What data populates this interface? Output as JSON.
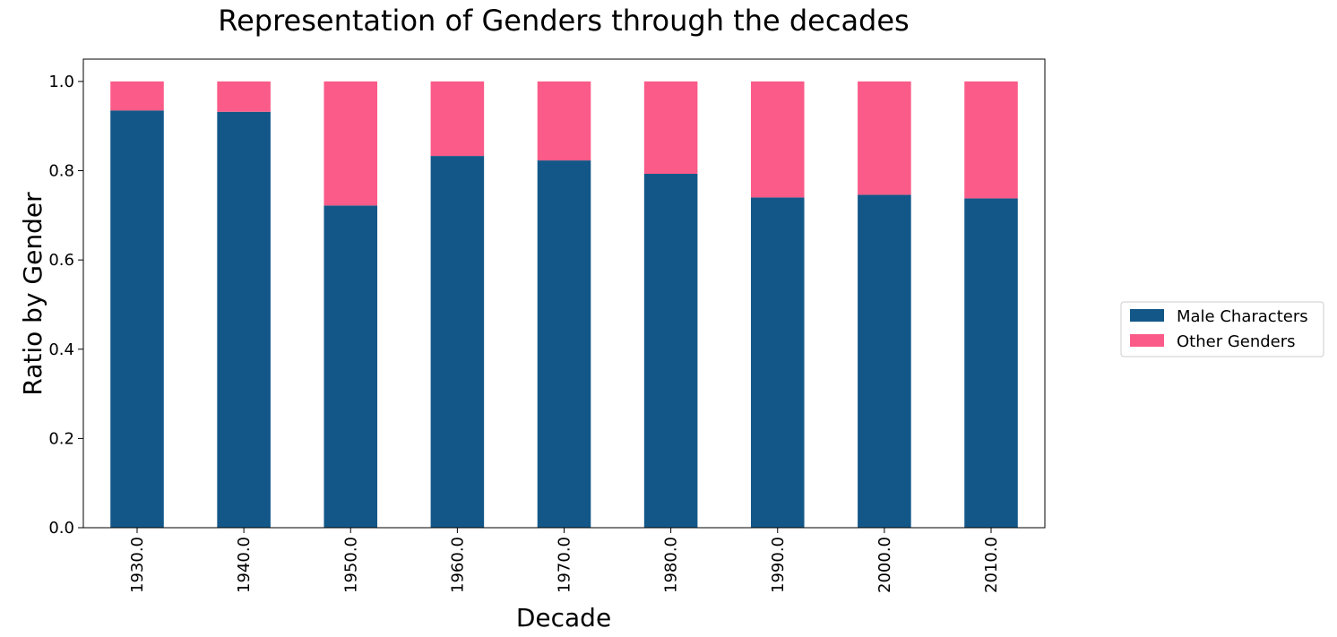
{
  "chart_data": {
    "type": "bar",
    "stacked": true,
    "title": "Representation of Genders through the decades",
    "xlabel": "Decade",
    "ylabel": "Ratio by Gender",
    "categories": [
      "1930.0",
      "1940.0",
      "1950.0",
      "1960.0",
      "1970.0",
      "1980.0",
      "1990.0",
      "2000.0",
      "2010.0"
    ],
    "series": [
      {
        "name": "Male Characters",
        "color": "#135788",
        "values": [
          0.935,
          0.932,
          0.722,
          0.833,
          0.823,
          0.793,
          0.74,
          0.746,
          0.738
        ]
      },
      {
        "name": "Other Genders",
        "color": "#fb5b88",
        "values": [
          0.065,
          0.068,
          0.278,
          0.167,
          0.177,
          0.207,
          0.26,
          0.254,
          0.262
        ]
      }
    ],
    "ylim": [
      0,
      1.05
    ],
    "yticks": [
      "0.0",
      "0.2",
      "0.4",
      "0.6",
      "0.8",
      "1.0"
    ],
    "ytick_values": [
      0,
      0.2,
      0.4,
      0.6,
      0.8,
      1.0
    ],
    "xtick_rotation": "vertical",
    "grid": false,
    "legend": "right"
  }
}
